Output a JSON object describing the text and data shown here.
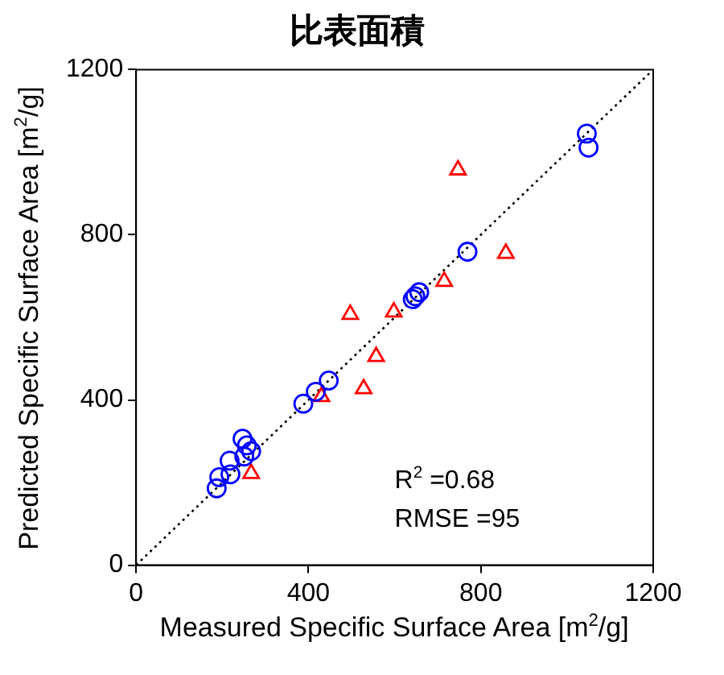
{
  "chart_data": {
    "type": "scatter",
    "title": "比表面積",
    "xlabel": "Measured Specific Surface Area [m$^{2}$/g]",
    "ylabel": "Predicted Specific Surface Area [m$^{2}$/g]",
    "xlim": [
      0,
      1200
    ],
    "ylim": [
      0,
      1200
    ],
    "xticks": [
      0,
      400,
      800,
      1200
    ],
    "yticks": [
      0,
      400,
      800,
      1200
    ],
    "grid": false,
    "legend": false,
    "series": [
      {
        "type": "line",
        "color": "#000000",
        "line_style": "dotted",
        "marker": "none",
        "x": [
          0,
          1200
        ],
        "values": [
          0,
          1200
        ]
      },
      {
        "color": "#0000ff",
        "marker": "circle",
        "x": [
          1046,
          1050,
          769,
          648,
          657,
          642,
          447,
          417,
          388,
          247,
          257,
          267,
          251,
          217,
          219,
          193,
          187
        ],
        "values": [
          1045,
          1011,
          759,
          651,
          661,
          644,
          447,
          420,
          391,
          306,
          290,
          276,
          263,
          253,
          220,
          213,
          186
        ]
      },
      {
        "color": "#ff0000",
        "marker": "triangle",
        "x": [
          747,
          858,
          715,
          598,
          497,
          557,
          528,
          430,
          267
        ],
        "values": [
          957,
          755,
          687,
          613,
          607,
          505,
          427,
          408,
          222
        ]
      }
    ],
    "annotations": [
      "R$^{2}$ =0.68",
      "RMSE =95"
    ]
  }
}
